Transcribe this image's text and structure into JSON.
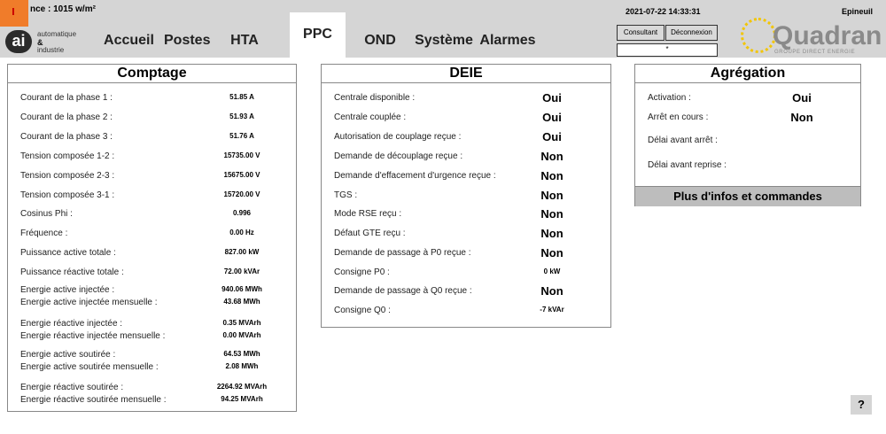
{
  "header": {
    "irradiance": "nce : 1015 w/m²",
    "logo": {
      "mark": "ai",
      "line1": "automatique",
      "line2": "&",
      "line3": "industrie"
    },
    "tabs": [
      "Accueil",
      "Postes",
      "HTA",
      "PPC",
      "OND",
      "Système",
      "Alarmes"
    ],
    "active_tab_index": 3,
    "datetime": "2021-07-22 14:33:31",
    "site": "Epineuil",
    "buttons": [
      "Consultant",
      "Déconnexion"
    ],
    "user_field": "*",
    "brand": {
      "name": "Quadran",
      "tagline": "GROUPE DIRECT ENERGIE"
    }
  },
  "comptage": {
    "title": "Comptage",
    "rows": [
      {
        "label": "Courant de la phase 1 :",
        "value": "51.85 A"
      },
      {
        "label": "Courant de la phase 2 :",
        "value": "51.93 A"
      },
      {
        "label": "Courant de la phase 3 :",
        "value": "51.76 A"
      },
      {
        "label": "Tension composée 1-2 :",
        "value": "15735.00 V"
      },
      {
        "label": "Tension composée 2-3 :",
        "value": "15675.00 V"
      },
      {
        "label": "Tension composée 3-1 :",
        "value": "15720.00 V"
      },
      {
        "label": "Cosinus Phi :",
        "value": "0.996"
      },
      {
        "label": "Fréquence :",
        "value": "0.00 Hz"
      },
      {
        "label": "Puissance active totale :",
        "value": "827.00 kW"
      },
      {
        "label": "Puissance réactive totale :",
        "value": "72.00 kVAr"
      },
      {
        "label": "Energie active injectée :",
        "value": "940.06 MWh"
      },
      {
        "label": "Energie active injectée mensuelle :",
        "value": "43.68 MWh"
      },
      {
        "label": "Energie réactive injectée :",
        "value": "0.35 MVArh"
      },
      {
        "label": "Energie réactive injectée mensuelle :",
        "value": "0.00 MVArh"
      },
      {
        "label": "Energie active soutirée :",
        "value": "64.53 MWh"
      },
      {
        "label": "Energie active soutirée mensuelle :",
        "value": "2.08 MWh"
      },
      {
        "label": "Energie réactive soutirée :",
        "value": "2264.92 MVArh"
      },
      {
        "label": "Energie réactive soutirée mensuelle :",
        "value": "94.25 MVArh"
      }
    ]
  },
  "deie": {
    "title": "DEIE",
    "rows": [
      {
        "label": "Centrale disponible :",
        "value": "Oui"
      },
      {
        "label": "Centrale couplée :",
        "value": "Oui"
      },
      {
        "label": "Autorisation de couplage reçue :",
        "value": "Oui"
      },
      {
        "label": "Demande de découplage reçue :",
        "value": "Non"
      },
      {
        "label": "Demande d'effacement d'urgence reçue :",
        "value": "Non"
      },
      {
        "label": "TGS :",
        "value": "Non"
      },
      {
        "label": "Mode RSE reçu :",
        "value": "Non"
      },
      {
        "label": "Défaut GTE reçu :",
        "value": "Non"
      },
      {
        "label": "Demande de passage à P0 reçue :",
        "value": "Non"
      },
      {
        "label": "Consigne P0 :",
        "value": "0 kW"
      },
      {
        "label": "Demande de passage à Q0 reçue :",
        "value": "Non"
      },
      {
        "label": "Consigne Q0 :",
        "value": "-7 kVAr"
      }
    ]
  },
  "agregation": {
    "title": "Agrégation",
    "rows": [
      {
        "label": "Activation :",
        "value": "Oui"
      },
      {
        "label": "Arrêt en cours :",
        "value": "Non"
      },
      {
        "label": "Délai avant arrêt :"
      },
      {
        "label": "Délai avant reprise :"
      }
    ],
    "button": "Plus d'infos et commandes"
  },
  "help": "?"
}
